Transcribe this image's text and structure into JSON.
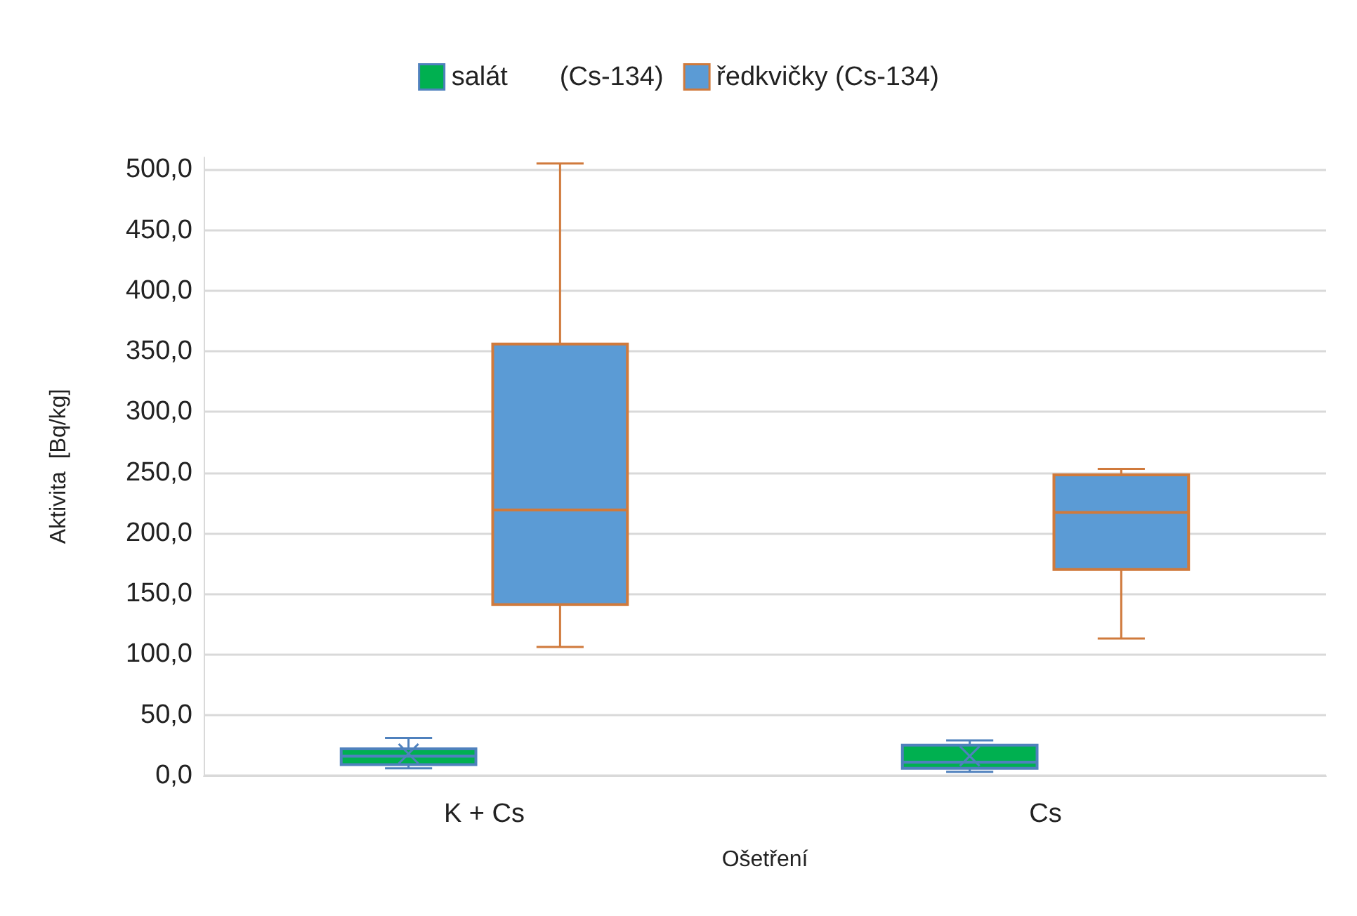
{
  "chart_data": {
    "type": "box",
    "xlabel": "Ošetření",
    "ylabel": "Aktivita  [Bq/kg]",
    "categories": [
      "K + Cs",
      "Cs"
    ],
    "series": [
      {
        "name": "salát       (Cs-134)",
        "color": "#00b050",
        "boxes": [
          {
            "low": 6,
            "q1": 9,
            "median": 16,
            "q3": 22,
            "high": 31,
            "mean": 18
          },
          {
            "low": 3,
            "q1": 6,
            "median": 11,
            "q3": 25,
            "high": 29,
            "mean": 16
          }
        ]
      },
      {
        "name": "ředkvičky (Cs-134)",
        "color": "#5b9bd5",
        "boxes": [
          {
            "low": 106,
            "q1": 141,
            "median": 219,
            "q3": 356,
            "high": 505
          },
          {
            "low": 113,
            "q1": 170,
            "median": 217,
            "q3": 248,
            "high": 253
          }
        ]
      }
    ],
    "ylim": [
      0,
      510
    ],
    "yticks": [
      {
        "value": 0,
        "label": "0,0"
      },
      {
        "value": 50,
        "label": "50,0"
      },
      {
        "value": 100,
        "label": "100,0"
      },
      {
        "value": 150,
        "label": "150,0"
      },
      {
        "value": 200,
        "label": "200,0"
      },
      {
        "value": 250,
        "label": "250,0"
      },
      {
        "value": 300,
        "label": "300,0"
      },
      {
        "value": 350,
        "label": "350,0"
      },
      {
        "value": 400,
        "label": "400,0"
      },
      {
        "value": 450,
        "label": "450,0"
      },
      {
        "value": 500,
        "label": "500,0"
      }
    ],
    "grid": "y",
    "legend": "top"
  }
}
